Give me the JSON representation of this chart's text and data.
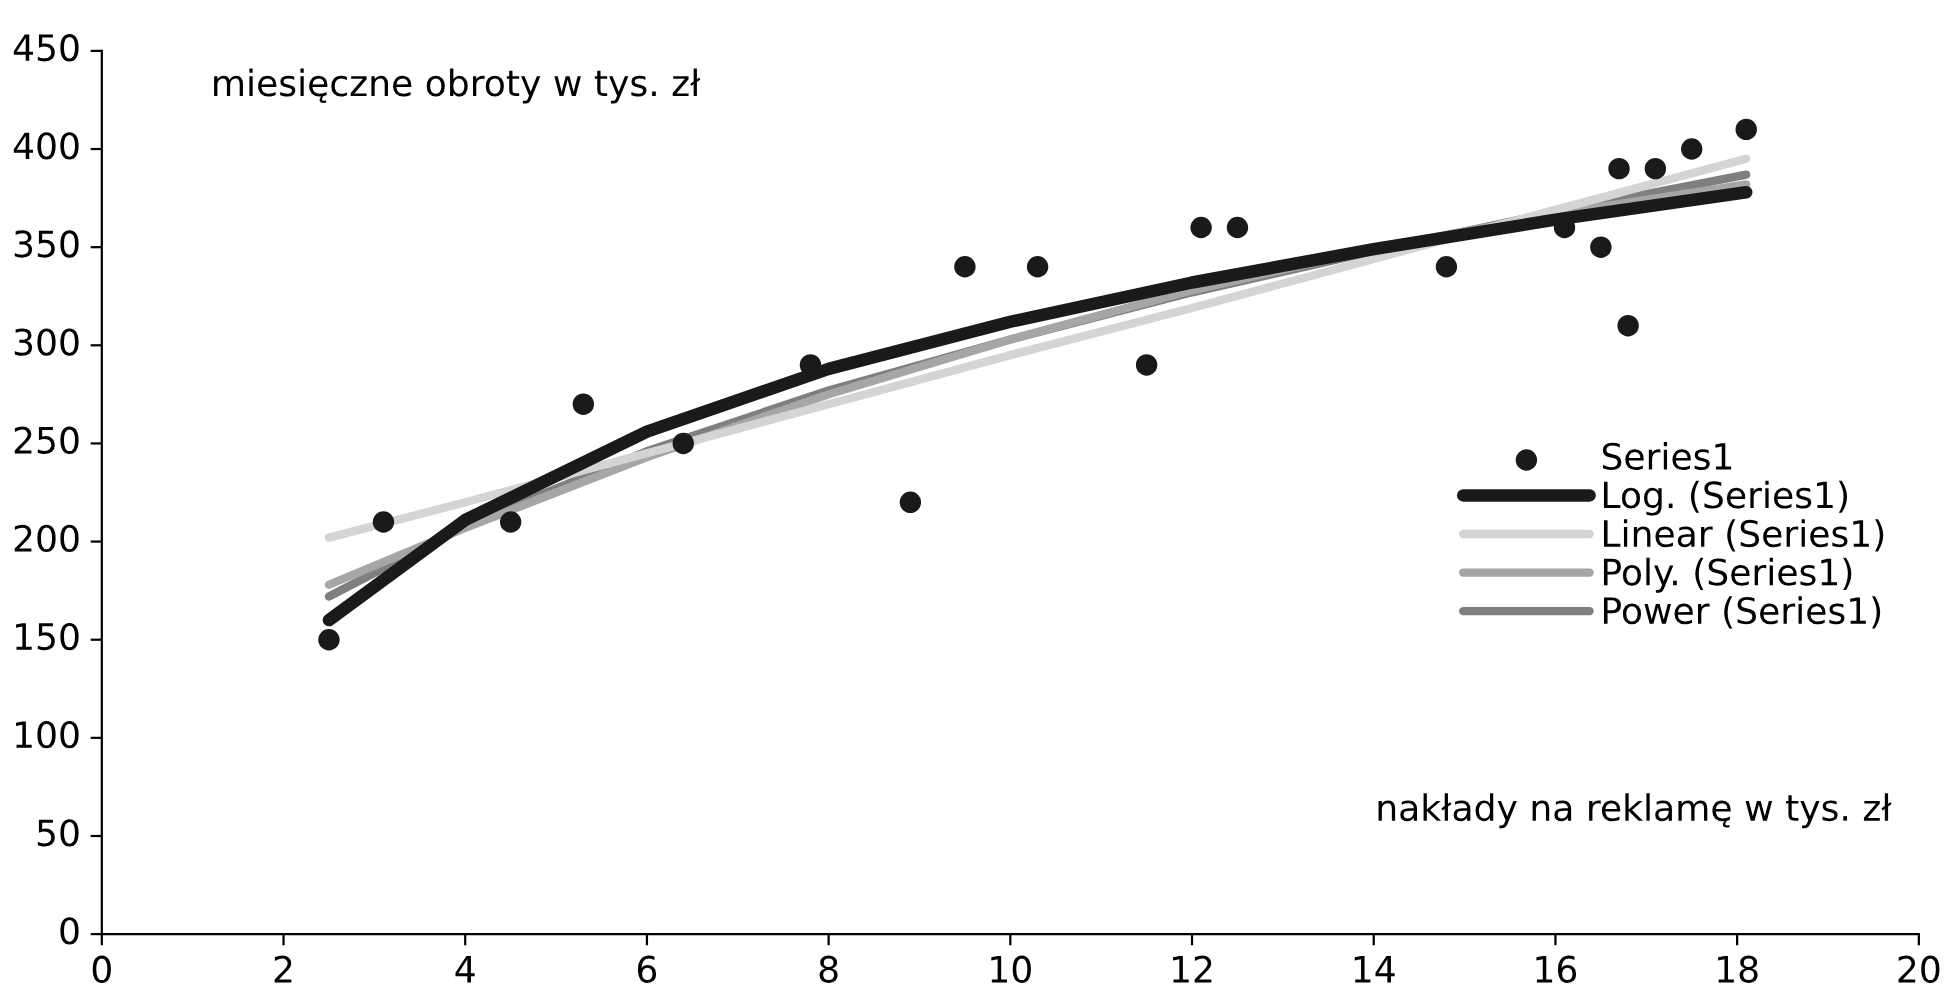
{
  "chart_data": {
    "type": "scatter",
    "xlabel": "nakłady na reklamę w tys. zł",
    "ylabel": "miesięczne obroty w tys. zł",
    "xlim": [
      0,
      20
    ],
    "xticks": [
      0,
      2,
      4,
      6,
      8,
      10,
      12,
      14,
      16,
      18,
      20
    ],
    "ylim": [
      0,
      450
    ],
    "yticks": [
      0,
      50,
      100,
      150,
      200,
      250,
      300,
      350,
      400,
      450
    ],
    "grid": false,
    "legend": "right",
    "series": [
      {
        "name": "Series1",
        "marker": "circle",
        "color": "#1a1a1a",
        "x": [
          2.5,
          3.1,
          4.5,
          5.3,
          6.4,
          7.8,
          8.9,
          9.5,
          10.3,
          11.5,
          12.1,
          12.5,
          14.8,
          16.1,
          16.5,
          16.7,
          16.8,
          17.1,
          17.5,
          18.1
        ],
        "values": [
          150,
          210,
          210,
          270,
          250,
          290,
          220,
          340,
          340,
          290,
          360,
          360,
          340,
          360,
          350,
          390,
          310,
          390,
          400,
          410
        ]
      },
      {
        "name": "Log. (Series1)",
        "type": "line",
        "marker": "none",
        "color": "#1a1a1a",
        "x": [
          2.5,
          4,
          6,
          8,
          10,
          12,
          14,
          16,
          18.1
        ],
        "values": [
          160,
          211,
          256,
          288,
          312,
          332,
          349,
          364,
          378
        ]
      },
      {
        "name": "Linear (Series1)",
        "type": "line",
        "marker": "none",
        "color": "#d4d4d4",
        "x": [
          2.5,
          4,
          6,
          8,
          10,
          12,
          14,
          16,
          18.1
        ],
        "values": [
          202,
          220,
          245,
          270,
          295,
          319,
          344,
          369,
          395
        ]
      },
      {
        "name": "Poly. (Series1)",
        "type": "line",
        "marker": "none",
        "color": "#a6a6a6",
        "x": [
          2.5,
          4,
          6,
          8,
          10,
          12,
          14,
          16,
          18.1
        ],
        "values": [
          178,
          207,
          243,
          275,
          303,
          328,
          349,
          367,
          382
        ]
      },
      {
        "name": "Power (Series1)",
        "type": "line",
        "marker": "none",
        "color": "#7f7f7f",
        "x": [
          2.5,
          4,
          6,
          8,
          10,
          12,
          14,
          16,
          18.1
        ],
        "values": [
          172,
          208,
          246,
          277,
          303,
          327,
          348,
          368,
          387
        ]
      }
    ]
  }
}
